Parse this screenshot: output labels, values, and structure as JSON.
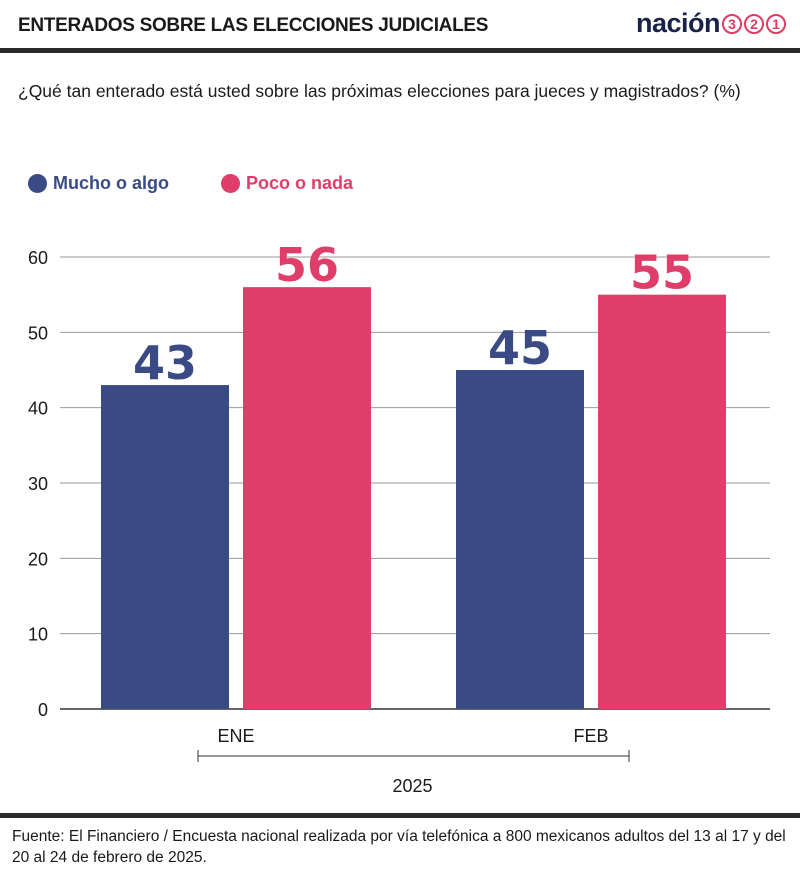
{
  "header": {
    "title": "ENTERADOS SOBRE LAS ELECCIONES JUDICIALES"
  },
  "brand": {
    "word": "nación",
    "digits": [
      "3",
      "2",
      "1"
    ],
    "color": "#1a2247",
    "accent": "#e03b63"
  },
  "question": "¿Qué tan enterado está usted sobre las próximas elecciones para jueces y magistrados? (%)",
  "footer": "Fuente: El Financiero / Encuesta nacional realizada por vía telefónica a 800 mexicanos adultos del 13 al 17 y del 20 al 24 de febrero de 2025.",
  "chart_data": {
    "type": "bar",
    "categories": [
      "ENE",
      "FEB"
    ],
    "group_label": "2025",
    "series": [
      {
        "name": "Mucho o algo",
        "color": "#3a4a85",
        "values": [
          43,
          45
        ]
      },
      {
        "name": "Poco o nada",
        "color": "#e03e6a",
        "values": [
          56,
          55
        ]
      }
    ],
    "ylim": [
      0,
      60
    ],
    "yticks": [
      0,
      10,
      20,
      30,
      40,
      50,
      60
    ],
    "grid": true,
    "legend": "top-left",
    "xlabel": "",
    "ylabel": ""
  }
}
